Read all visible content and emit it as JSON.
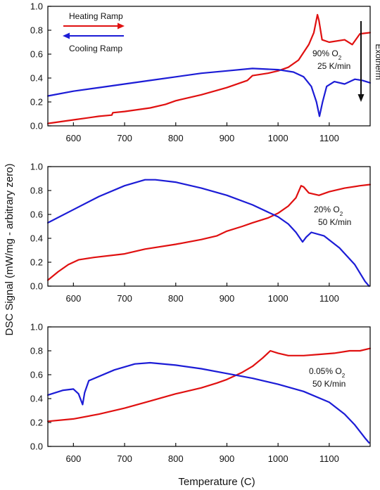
{
  "figure": {
    "ylabel": "DSC Signal (mW/mg - arbitrary zero)",
    "xlabel": "Temperature (C)"
  },
  "legend": {
    "heating_label": "Heating Ramp",
    "cooling_label": "Cooling Ramp",
    "heating_color": "#e01010",
    "cooling_color": "#1c1cd6"
  },
  "exotherm": {
    "label": "Exotherm",
    "direction": "down"
  },
  "chart_data": [
    {
      "type": "line",
      "xlim": [
        550,
        1180
      ],
      "ylim": [
        0,
        1.0
      ],
      "xticks": [
        "600",
        "700",
        "800",
        "900",
        "1000",
        "1100"
      ],
      "yticks": [
        "0.0",
        "0.2",
        "0.4",
        "0.6",
        "0.8",
        "1.0"
      ],
      "annotation": {
        "o2_value": "90%",
        "o2_text": "O",
        "o2_sub": "2",
        "rate": "25 K/min"
      },
      "series": [
        {
          "name": "Heating Ramp",
          "color": "#e01010",
          "points": [
            [
              550,
              0.02
            ],
            [
              600,
              0.05
            ],
            [
              650,
              0.08
            ],
            [
              675,
              0.09
            ],
            [
              677,
              0.11
            ],
            [
              700,
              0.12
            ],
            [
              750,
              0.15
            ],
            [
              780,
              0.18
            ],
            [
              800,
              0.21
            ],
            [
              850,
              0.26
            ],
            [
              900,
              0.32
            ],
            [
              940,
              0.38
            ],
            [
              950,
              0.42
            ],
            [
              980,
              0.44
            ],
            [
              1000,
              0.46
            ],
            [
              1020,
              0.49
            ],
            [
              1040,
              0.55
            ],
            [
              1060,
              0.68
            ],
            [
              1070,
              0.78
            ],
            [
              1077,
              0.93
            ],
            [
              1080,
              0.88
            ],
            [
              1086,
              0.72
            ],
            [
              1100,
              0.7
            ],
            [
              1130,
              0.72
            ],
            [
              1145,
              0.68
            ],
            [
              1160,
              0.77
            ],
            [
              1180,
              0.78
            ]
          ]
        },
        {
          "name": "Cooling Ramp",
          "color": "#1c1cd6",
          "points": [
            [
              550,
              0.25
            ],
            [
              600,
              0.29
            ],
            [
              650,
              0.32
            ],
            [
              700,
              0.35
            ],
            [
              750,
              0.38
            ],
            [
              800,
              0.41
            ],
            [
              850,
              0.44
            ],
            [
              900,
              0.46
            ],
            [
              950,
              0.48
            ],
            [
              1000,
              0.47
            ],
            [
              1030,
              0.45
            ],
            [
              1050,
              0.41
            ],
            [
              1065,
              0.33
            ],
            [
              1075,
              0.2
            ],
            [
              1081,
              0.08
            ],
            [
              1087,
              0.2
            ],
            [
              1095,
              0.33
            ],
            [
              1110,
              0.37
            ],
            [
              1130,
              0.35
            ],
            [
              1150,
              0.39
            ],
            [
              1165,
              0.38
            ],
            [
              1180,
              0.36
            ]
          ]
        }
      ]
    },
    {
      "type": "line",
      "xlim": [
        550,
        1180
      ],
      "ylim": [
        0,
        1.0
      ],
      "xticks": [
        "600",
        "700",
        "800",
        "900",
        "1000",
        "1100"
      ],
      "yticks": [
        "0.0",
        "0.2",
        "0.4",
        "0.6",
        "0.8",
        "1.0"
      ],
      "annotation": {
        "o2_value": "20%",
        "o2_text": "O",
        "o2_sub": "2",
        "rate": "50 K/min"
      },
      "series": [
        {
          "name": "Heating Ramp",
          "color": "#e01010",
          "points": [
            [
              550,
              0.05
            ],
            [
              570,
              0.12
            ],
            [
              590,
              0.18
            ],
            [
              610,
              0.22
            ],
            [
              640,
              0.24
            ],
            [
              700,
              0.27
            ],
            [
              740,
              0.31
            ],
            [
              800,
              0.35
            ],
            [
              850,
              0.39
            ],
            [
              880,
              0.42
            ],
            [
              900,
              0.46
            ],
            [
              930,
              0.5
            ],
            [
              950,
              0.53
            ],
            [
              980,
              0.57
            ],
            [
              1000,
              0.61
            ],
            [
              1020,
              0.67
            ],
            [
              1035,
              0.74
            ],
            [
              1045,
              0.84
            ],
            [
              1050,
              0.83
            ],
            [
              1060,
              0.78
            ],
            [
              1080,
              0.76
            ],
            [
              1100,
              0.79
            ],
            [
              1130,
              0.82
            ],
            [
              1160,
              0.84
            ],
            [
              1180,
              0.85
            ]
          ]
        },
        {
          "name": "Cooling Ramp",
          "color": "#1c1cd6",
          "points": [
            [
              550,
              0.53
            ],
            [
              600,
              0.64
            ],
            [
              650,
              0.75
            ],
            [
              700,
              0.84
            ],
            [
              740,
              0.89
            ],
            [
              760,
              0.89
            ],
            [
              800,
              0.87
            ],
            [
              850,
              0.82
            ],
            [
              900,
              0.76
            ],
            [
              950,
              0.68
            ],
            [
              1000,
              0.58
            ],
            [
              1020,
              0.52
            ],
            [
              1035,
              0.45
            ],
            [
              1048,
              0.37
            ],
            [
              1055,
              0.41
            ],
            [
              1065,
              0.45
            ],
            [
              1090,
              0.42
            ],
            [
              1120,
              0.32
            ],
            [
              1150,
              0.18
            ],
            [
              1170,
              0.04
            ],
            [
              1178,
              0.0
            ]
          ]
        }
      ]
    },
    {
      "type": "line",
      "xlim": [
        550,
        1180
      ],
      "ylim": [
        0,
        1.0
      ],
      "xticks": [
        "600",
        "700",
        "800",
        "900",
        "1000",
        "1100"
      ],
      "yticks": [
        "0.0",
        "0.2",
        "0.4",
        "0.6",
        "0.8",
        "1.0"
      ],
      "annotation": {
        "o2_value": "0.05%",
        "o2_text": "O",
        "o2_sub": "2",
        "rate": "50 K/min"
      },
      "series": [
        {
          "name": "Heating Ramp",
          "color": "#e01010",
          "points": [
            [
              550,
              0.21
            ],
            [
              600,
              0.23
            ],
            [
              650,
              0.27
            ],
            [
              700,
              0.32
            ],
            [
              750,
              0.38
            ],
            [
              800,
              0.44
            ],
            [
              850,
              0.49
            ],
            [
              880,
              0.53
            ],
            [
              900,
              0.56
            ],
            [
              930,
              0.62
            ],
            [
              950,
              0.67
            ],
            [
              970,
              0.74
            ],
            [
              985,
              0.8
            ],
            [
              1000,
              0.78
            ],
            [
              1020,
              0.76
            ],
            [
              1050,
              0.76
            ],
            [
              1080,
              0.77
            ],
            [
              1110,
              0.78
            ],
            [
              1140,
              0.8
            ],
            [
              1160,
              0.8
            ],
            [
              1180,
              0.82
            ]
          ]
        },
        {
          "name": "Cooling Ramp",
          "color": "#1c1cd6",
          "points": [
            [
              550,
              0.43
            ],
            [
              580,
              0.47
            ],
            [
              600,
              0.48
            ],
            [
              610,
              0.44
            ],
            [
              618,
              0.35
            ],
            [
              622,
              0.45
            ],
            [
              630,
              0.55
            ],
            [
              680,
              0.64
            ],
            [
              720,
              0.69
            ],
            [
              750,
              0.7
            ],
            [
              800,
              0.68
            ],
            [
              850,
              0.65
            ],
            [
              900,
              0.61
            ],
            [
              950,
              0.57
            ],
            [
              1000,
              0.52
            ],
            [
              1050,
              0.46
            ],
            [
              1100,
              0.37
            ],
            [
              1130,
              0.27
            ],
            [
              1150,
              0.18
            ],
            [
              1170,
              0.07
            ],
            [
              1178,
              0.03
            ]
          ]
        }
      ]
    }
  ]
}
